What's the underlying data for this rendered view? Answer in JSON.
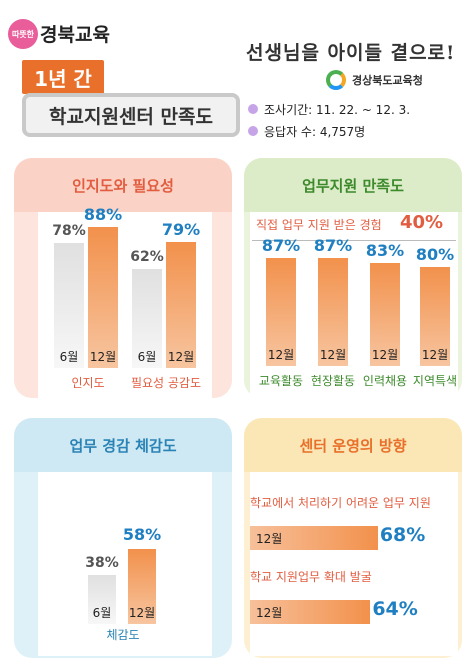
{
  "header": {
    "logo_badge": "따뜻한",
    "logo_text": "경북교육",
    "year_tag": "1년 간",
    "title": "학교지원센터 만족도",
    "slogan": "선생님을 아이들 곁으로!",
    "org_name": "경상북도교육청",
    "survey_period": "조사기간: 11. 22. ~ 12. 3.",
    "respondents": "응답자 수: 4,757명"
  },
  "panels": {
    "awareness": {
      "title": "인지도와 필요성"
    },
    "work_support": {
      "title": "업무지원 만족도",
      "subtitle": "직접 업무 지원 받은 경험",
      "subtitle_value": "40%"
    },
    "workload": {
      "title": "업무 경감 체감도"
    },
    "direction": {
      "title": "센터 운영의 방향"
    }
  },
  "chart_data": [
    {
      "type": "bar",
      "title": "인지도와 필요성",
      "categories": [
        "인지도",
        "필요성 공감도"
      ],
      "series": [
        {
          "name": "6월",
          "values": [
            78,
            62
          ]
        },
        {
          "name": "12월",
          "values": [
            88,
            79
          ]
        }
      ],
      "value_labels": {
        "6월": [
          "78%",
          "62%"
        ],
        "12월": [
          "88%",
          "79%"
        ]
      },
      "ylim": [
        0,
        100
      ]
    },
    {
      "type": "bar",
      "title": "업무지원 만족도",
      "categories": [
        "교육활동",
        "현장활동",
        "인력채용",
        "지역특색"
      ],
      "series": [
        {
          "name": "12월",
          "values": [
            87,
            87,
            83,
            80
          ]
        }
      ],
      "value_labels": [
        "87%",
        "87%",
        "83%",
        "80%"
      ],
      "ylim": [
        0,
        100
      ]
    },
    {
      "type": "bar",
      "title": "업무 경감 체감도",
      "categories": [
        "체감도"
      ],
      "series": [
        {
          "name": "6월",
          "values": [
            38
          ]
        },
        {
          "name": "12월",
          "values": [
            58
          ]
        }
      ],
      "value_labels": {
        "6월": [
          "38%"
        ],
        "12월": [
          "58%"
        ]
      },
      "ylim": [
        0,
        100
      ]
    },
    {
      "type": "bar",
      "orientation": "horizontal",
      "title": "센터 운영의 방향",
      "categories": [
        "학교에서 처리하기 어려운 업무 지원",
        "학교 지원업무 확대 발굴"
      ],
      "series": [
        {
          "name": "12월",
          "values": [
            68,
            64
          ]
        }
      ],
      "value_labels": [
        "68%",
        "64%"
      ],
      "xlim": [
        0,
        100
      ]
    }
  ]
}
